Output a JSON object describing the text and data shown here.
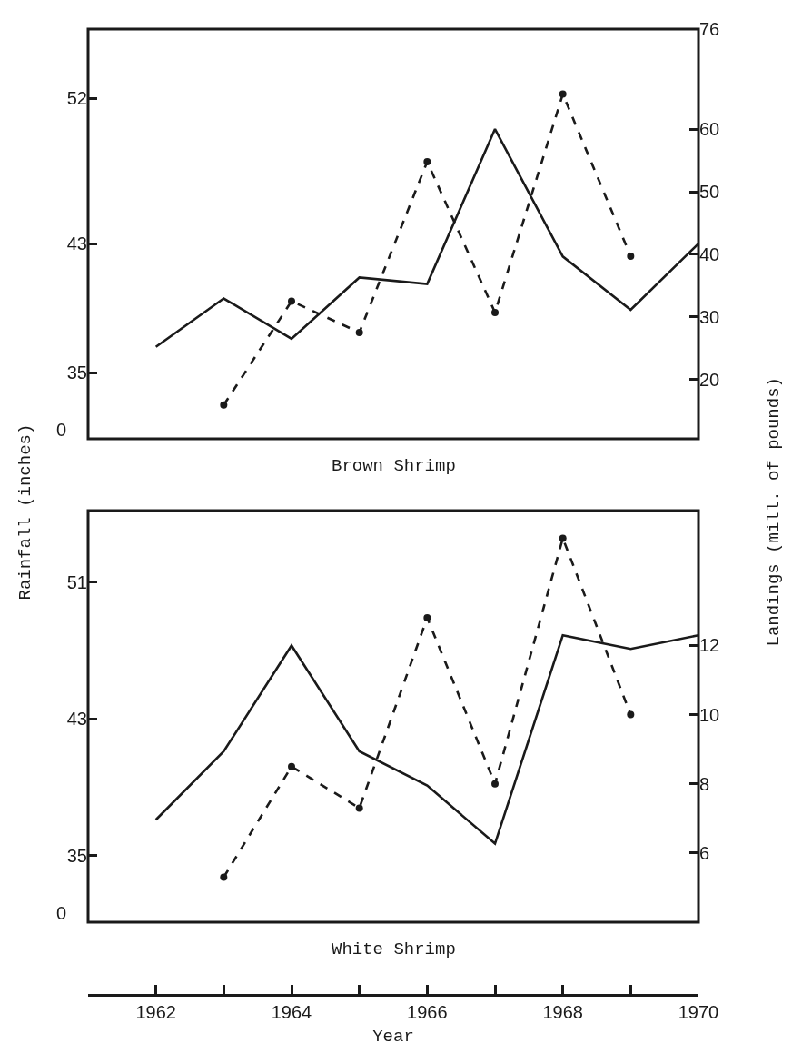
{
  "chart_data": [
    {
      "type": "line",
      "title": "Brown Shrimp",
      "ylabel": "Rainfall (inches)",
      "y2label": "Landings (mill. of pounds)",
      "x": [
        1962,
        1963,
        1964,
        1965,
        1966,
        1967,
        1968,
        1969,
        1970
      ],
      "series": [
        {
          "color": "#1a1a1a",
          "values": [
            36.6,
            39.6,
            37.1,
            40.9,
            40.5,
            50.1,
            42.2,
            38.9,
            43.0
          ],
          "line_style": "solid",
          "marker": "none"
        },
        {
          "color": "#1a1a1a",
          "x": [
            1963,
            1964,
            1965,
            1966,
            1967,
            1968,
            1969
          ],
          "values": [
            15.9,
            32.5,
            27.5,
            54.8,
            30.7,
            65.6,
            39.7
          ],
          "axis": "y2",
          "line_style": "dashed",
          "marker": "circle"
        }
      ],
      "xlim": [
        1961,
        1970
      ],
      "ylim": [
        30.9,
        56.3
      ],
      "yticks": [
        35,
        43,
        52
      ],
      "annotations": [
        "0"
      ],
      "y2lim": [
        10.5,
        76
      ],
      "y2ticks": [
        20,
        30,
        40,
        50,
        60,
        76
      ],
      "tick_labels": "y"
    },
    {
      "type": "line",
      "title": "White Shrimp",
      "xlabel": "Year",
      "x": [
        1962,
        1963,
        1964,
        1965,
        1966,
        1967,
        1968,
        1969,
        1970
      ],
      "series": [
        {
          "color": "#1a1a1a",
          "values": [
            37.1,
            41.1,
            47.3,
            41.1,
            39.1,
            35.7,
            47.9,
            47.1,
            47.9
          ],
          "line_style": "solid",
          "marker": "none"
        },
        {
          "color": "#1a1a1a",
          "x": [
            1963,
            1964,
            1965,
            1966,
            1967,
            1968,
            1969
          ],
          "values": [
            5.3,
            8.5,
            7.3,
            12.8,
            8.0,
            15.1,
            10.0
          ],
          "axis": "y2",
          "line_style": "dashed",
          "marker": "circle"
        }
      ],
      "xlim": [
        1961,
        1970
      ],
      "xticks": [
        1962,
        1964,
        1966,
        1968,
        1970
      ],
      "ylim": [
        31.1,
        55.2
      ],
      "yticks": [
        35,
        43,
        51
      ],
      "annotations": [
        "0"
      ],
      "y2lim": [
        4.0,
        15.9
      ],
      "y2ticks": [
        6,
        8,
        10,
        12
      ]
    }
  ]
}
